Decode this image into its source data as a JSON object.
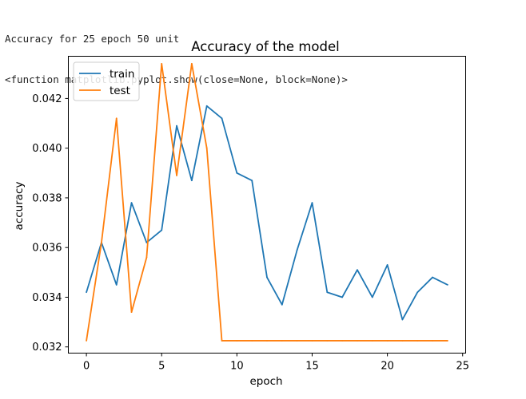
{
  "output": {
    "line1": "Accuracy for 25 epoch 50 unit",
    "line2": "<function matplotlib.pyplot.show(close=None, block=None)>"
  },
  "chart_data": {
    "type": "line",
    "title": "Accuracy of the model",
    "xlabel": "epoch",
    "ylabel": "accuracy",
    "xlim": [
      -1.2,
      25.2
    ],
    "ylim": [
      0.03175,
      0.0437
    ],
    "xticks": [
      0,
      5,
      10,
      15,
      20,
      25
    ],
    "yticks": [
      0.032,
      0.034,
      0.036,
      0.038,
      0.04,
      0.042
    ],
    "ytick_labels": [
      "0.032",
      "0.034",
      "0.036",
      "0.038",
      "0.040",
      "0.042"
    ],
    "x": [
      0,
      1,
      2,
      3,
      4,
      5,
      6,
      7,
      8,
      9,
      10,
      11,
      12,
      13,
      14,
      15,
      16,
      17,
      18,
      19,
      20,
      21,
      22,
      23,
      24
    ],
    "grid": false,
    "legend_position": "upper-left",
    "series": [
      {
        "name": "train",
        "color": "#1f77b4",
        "values": [
          0.0342,
          0.0362,
          0.0345,
          0.0378,
          0.0362,
          0.0367,
          0.0409,
          0.0387,
          0.0417,
          0.0412,
          0.039,
          0.0387,
          0.0348,
          0.0337,
          0.0359,
          0.0378,
          0.0342,
          0.034,
          0.0351,
          0.034,
          0.0353,
          0.0331,
          0.0342,
          0.0348,
          0.0345
        ]
      },
      {
        "name": "test",
        "color": "#ff7f0e",
        "values": [
          0.03225,
          0.0362,
          0.0412,
          0.0334,
          0.0356,
          0.0434,
          0.0389,
          0.0434,
          0.04,
          0.03225,
          0.03225,
          0.03225,
          0.03225,
          0.03225,
          0.03225,
          0.03225,
          0.03225,
          0.03225,
          0.03225,
          0.03225,
          0.03225,
          0.03225,
          0.03225,
          0.03225,
          0.03225
        ]
      }
    ]
  }
}
